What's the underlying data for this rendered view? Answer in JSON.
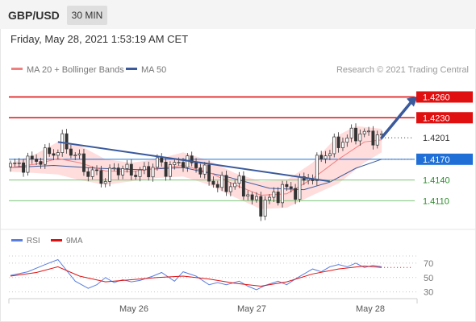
{
  "header": {
    "symbol": "GBP/USD",
    "period_button": "30 MIN"
  },
  "timestamp": "Friday, May 28, 2021 1:53:19 AM CET",
  "legend": {
    "ma20": "MA 20 + Bollinger Bands",
    "ma50": "MA 50",
    "copyright": "Research © 2021 Trading Central",
    "rsi": "RSI",
    "ma9": "9MA"
  },
  "colors": {
    "ma20_bb": "#f08080",
    "ma50": "#3a5a9c",
    "resistance": "#e01010",
    "last_price": "#333333",
    "pivot": "#1f6fd6",
    "support": "#7cc47a",
    "support_text": "#2a8a2a",
    "rsi": "#5a7fe0",
    "rsi_ma": "#e01010",
    "band_fill": "#ffd7d7"
  },
  "chart_data": [
    {
      "type": "candlestick",
      "title": "GBP/USD 30 MIN",
      "x_tick_labels": [
        "May 26",
        "May 27",
        "May 28"
      ],
      "ylim": [
        1.4086,
        1.4278
      ],
      "series": [
        {
          "name": "MA 20 + Bollinger Bands",
          "color": "#f08080"
        },
        {
          "name": "MA 50",
          "color": "#3a5a9c"
        }
      ],
      "price_levels": [
        {
          "label": "1.4260",
          "value": 1.426,
          "kind": "resistance"
        },
        {
          "label": "1.4230",
          "value": 1.423,
          "kind": "resistance"
        },
        {
          "label": "1.4201",
          "value": 1.4201,
          "kind": "last"
        },
        {
          "label": "1.4170",
          "value": 1.417,
          "kind": "pivot"
        },
        {
          "label": "1.4140",
          "value": 1.414,
          "kind": "support"
        },
        {
          "label": "1.4110",
          "value": 1.411,
          "kind": "support"
        }
      ],
      "close_path": [
        [
          0,
          1.4159
        ],
        [
          3,
          1.4164
        ],
        [
          6,
          1.4169
        ],
        [
          9,
          1.4178
        ],
        [
          11,
          1.4184
        ],
        [
          12,
          1.4195
        ],
        [
          14,
          1.4182
        ],
        [
          16,
          1.4168
        ],
        [
          18,
          1.415
        ],
        [
          20,
          1.4148
        ],
        [
          22,
          1.414
        ],
        [
          24,
          1.4157
        ],
        [
          26,
          1.4155
        ],
        [
          28,
          1.4152
        ],
        [
          30,
          1.415
        ],
        [
          32,
          1.4154
        ],
        [
          34,
          1.4166
        ],
        [
          36,
          1.4157
        ],
        [
          38,
          1.416
        ],
        [
          40,
          1.417
        ],
        [
          42,
          1.4162
        ],
        [
          44,
          1.4158
        ],
        [
          46,
          1.414
        ],
        [
          48,
          1.4135
        ],
        [
          50,
          1.413
        ],
        [
          52,
          1.4137
        ],
        [
          54,
          1.4128
        ],
        [
          56,
          1.411
        ],
        [
          58,
          1.4102
        ],
        [
          60,
          1.4112
        ],
        [
          62,
          1.4122
        ],
        [
          64,
          1.4128
        ],
        [
          66,
          1.4125
        ],
        [
          68,
          1.414
        ],
        [
          70,
          1.4148
        ],
        [
          72,
          1.4175
        ],
        [
          74,
          1.4182
        ],
        [
          76,
          1.4195
        ],
        [
          78,
          1.42
        ],
        [
          80,
          1.4208
        ],
        [
          82,
          1.4206
        ],
        [
          84,
          1.4203
        ],
        [
          86,
          1.4201
        ]
      ],
      "ma20": [
        [
          0,
          1.4158
        ],
        [
          6,
          1.4163
        ],
        [
          11,
          1.4171
        ],
        [
          16,
          1.4165
        ],
        [
          22,
          1.4153
        ],
        [
          28,
          1.4152
        ],
        [
          34,
          1.4157
        ],
        [
          40,
          1.4161
        ],
        [
          46,
          1.4151
        ],
        [
          52,
          1.4133
        ],
        [
          58,
          1.4118
        ],
        [
          64,
          1.412
        ],
        [
          70,
          1.4142
        ],
        [
          76,
          1.417
        ],
        [
          82,
          1.4195
        ],
        [
          86,
          1.4198
        ]
      ],
      "ma50": [
        [
          0,
          1.4158
        ],
        [
          10,
          1.4161
        ],
        [
          20,
          1.4157
        ],
        [
          30,
          1.4155
        ],
        [
          40,
          1.4158
        ],
        [
          50,
          1.4145
        ],
        [
          60,
          1.4128
        ],
        [
          68,
          1.4126
        ],
        [
          74,
          1.4137
        ],
        [
          80,
          1.4157
        ],
        [
          86,
          1.417
        ]
      ],
      "bollinger_upper": [
        [
          0,
          1.4164
        ],
        [
          6,
          1.4178
        ],
        [
          11,
          1.4195
        ],
        [
          16,
          1.419
        ],
        [
          22,
          1.417
        ],
        [
          28,
          1.4165
        ],
        [
          34,
          1.417
        ],
        [
          40,
          1.418
        ],
        [
          46,
          1.4168
        ],
        [
          52,
          1.415
        ],
        [
          58,
          1.4138
        ],
        [
          64,
          1.414
        ],
        [
          70,
          1.4165
        ],
        [
          76,
          1.4205
        ],
        [
          80,
          1.4218
        ],
        [
          86,
          1.4214
        ]
      ],
      "bollinger_lower": [
        [
          0,
          1.4152
        ],
        [
          6,
          1.415
        ],
        [
          11,
          1.4148
        ],
        [
          16,
          1.414
        ],
        [
          22,
          1.4133
        ],
        [
          28,
          1.4138
        ],
        [
          34,
          1.4143
        ],
        [
          40,
          1.4145
        ],
        [
          46,
          1.4133
        ],
        [
          52,
          1.4115
        ],
        [
          58,
          1.4098
        ],
        [
          64,
          1.41
        ],
        [
          70,
          1.4118
        ],
        [
          76,
          1.4135
        ],
        [
          82,
          1.4165
        ],
        [
          86,
          1.418
        ]
      ],
      "trendline": [
        [
          11,
          1.4195
        ],
        [
          74,
          1.4138
        ]
      ],
      "projection_arrow": [
        [
          86,
          1.4201
        ],
        [
          94,
          1.426
        ]
      ]
    },
    {
      "type": "line",
      "title": "RSI",
      "ylim": [
        24,
        80
      ],
      "y_tick_labels": [
        "70",
        "50",
        "30"
      ],
      "series": [
        {
          "name": "RSI",
          "color": "#5a7fe0",
          "points": [
            [
              0,
              53
            ],
            [
              4,
              58
            ],
            [
              8,
              68
            ],
            [
              11,
              75
            ],
            [
              13,
              60
            ],
            [
              15,
              45
            ],
            [
              18,
              35
            ],
            [
              20,
              40
            ],
            [
              22,
              50
            ],
            [
              24,
              43
            ],
            [
              26,
              47
            ],
            [
              28,
              44
            ],
            [
              30,
              46
            ],
            [
              33,
              52
            ],
            [
              35,
              57
            ],
            [
              38,
              45
            ],
            [
              40,
              58
            ],
            [
              43,
              52
            ],
            [
              46,
              40
            ],
            [
              48,
              43
            ],
            [
              50,
              40
            ],
            [
              53,
              45
            ],
            [
              55,
              38
            ],
            [
              57,
              33
            ],
            [
              59,
              39
            ],
            [
              62,
              45
            ],
            [
              64,
              40
            ],
            [
              66,
              48
            ],
            [
              68,
              55
            ],
            [
              70,
              62
            ],
            [
              72,
              58
            ],
            [
              74,
              65
            ],
            [
              76,
              68
            ],
            [
              78,
              65
            ],
            [
              80,
              70
            ],
            [
              82,
              64
            ],
            [
              84,
              67
            ],
            [
              86,
              65
            ]
          ]
        },
        {
          "name": "9MA",
          "color": "#e01010",
          "points": [
            [
              0,
              52
            ],
            [
              6,
              57
            ],
            [
              11,
              65
            ],
            [
              16,
              52
            ],
            [
              22,
              44
            ],
            [
              28,
              47
            ],
            [
              34,
              50
            ],
            [
              40,
              52
            ],
            [
              46,
              48
            ],
            [
              52,
              42
            ],
            [
              58,
              38
            ],
            [
              64,
              44
            ],
            [
              70,
              55
            ],
            [
              76,
              62
            ],
            [
              82,
              66
            ],
            [
              86,
              64
            ]
          ]
        }
      ]
    }
  ]
}
